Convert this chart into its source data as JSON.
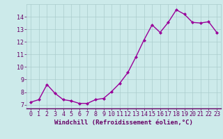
{
  "x": [
    0,
    1,
    2,
    3,
    4,
    5,
    6,
    7,
    8,
    9,
    10,
    11,
    12,
    13,
    14,
    15,
    16,
    17,
    18,
    19,
    20,
    21,
    22,
    23
  ],
  "y": [
    7.2,
    7.4,
    8.6,
    7.9,
    7.4,
    7.3,
    7.1,
    7.1,
    7.4,
    7.5,
    8.05,
    8.7,
    9.55,
    10.8,
    12.15,
    13.35,
    12.75,
    13.55,
    14.55,
    14.2,
    13.55,
    13.5,
    13.6,
    12.75
  ],
  "line_color": "#990099",
  "marker": "D",
  "marker_size": 2.0,
  "bg_color": "#cceaea",
  "grid_color": "#aacccc",
  "xlabel": "Windchill (Refroidissement éolien,°C)",
  "ylim": [
    6.7,
    15.0
  ],
  "xlim": [
    -0.5,
    23.5
  ],
  "yticks": [
    7,
    8,
    9,
    10,
    11,
    12,
    13,
    14
  ],
  "xticks": [
    0,
    1,
    2,
    3,
    4,
    5,
    6,
    7,
    8,
    9,
    10,
    11,
    12,
    13,
    14,
    15,
    16,
    17,
    18,
    19,
    20,
    21,
    22,
    23
  ],
  "label_color": "#660066",
  "line_width": 1.0,
  "xlabel_fontsize": 6.5,
  "tick_fontsize": 6.0,
  "spine_color": "#888888"
}
